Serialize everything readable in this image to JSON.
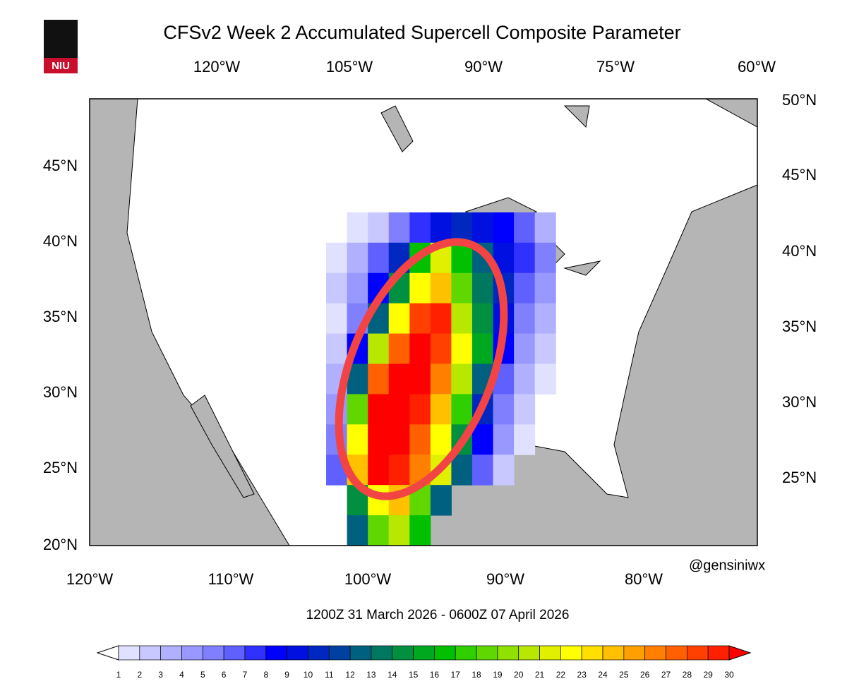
{
  "title": "CFSv2 Week 2 Accumulated Supercell Composite Parameter",
  "logo_text": "NIU",
  "credit": "@gensiniwx",
  "date_range": "1200Z 31  March  2026  - 0600Z 07  April  2026",
  "map": {
    "top_lon_labels": [
      "120°W",
      "105°W",
      "90°W",
      "75°W",
      "60°W"
    ],
    "right_lat_labels": [
      "50°N",
      "45°N",
      "40°N",
      "35°N",
      "30°N",
      "25°N"
    ],
    "left_lat_labels": [
      "45°N",
      "40°N",
      "35°N",
      "30°N",
      "25°N",
      "20°N"
    ],
    "bottom_lon_labels": [
      "120°W",
      "110°W",
      "100°W",
      "90°W",
      "80°W"
    ],
    "lon_range": [
      -120,
      -72
    ],
    "lat_range": [
      20,
      49.5
    ],
    "grid": {
      "lon0": -103,
      "dlon": 1.5,
      "dlat": 2,
      "rows": [
        {
          "lat": 41,
          "values": [
            null,
            1,
            2,
            5,
            7,
            9,
            10,
            9,
            8,
            6,
            3
          ]
        },
        {
          "lat": 39,
          "values": [
            1,
            3,
            6,
            10,
            16,
            21,
            16,
            12,
            9,
            7,
            5
          ]
        },
        {
          "lat": 37,
          "values": [
            2,
            4,
            8,
            14,
            22,
            24,
            18,
            13,
            10,
            6,
            4
          ]
        },
        {
          "lat": 35,
          "values": [
            1,
            5,
            12,
            22,
            28,
            29,
            20,
            14,
            9,
            5,
            3
          ]
        },
        {
          "lat": 33,
          "values": [
            2,
            8,
            20,
            27,
            30,
            28,
            22,
            15,
            8,
            4,
            2
          ]
        },
        {
          "lat": 31,
          "values": [
            3,
            12,
            27,
            30,
            30,
            26,
            20,
            12,
            6,
            3,
            1
          ]
        },
        {
          "lat": 29,
          "values": [
            4,
            18,
            30,
            30,
            29,
            24,
            17,
            10,
            5,
            2,
            null
          ]
        },
        {
          "lat": 27,
          "values": [
            5,
            22,
            30,
            30,
            27,
            22,
            14,
            8,
            4,
            1,
            null
          ]
        },
        {
          "lat": 25,
          "values": [
            6,
            24,
            30,
            29,
            26,
            21,
            12,
            6,
            2,
            null,
            null
          ]
        },
        {
          "lat": 23,
          "values": [
            null,
            14,
            22,
            24,
            18,
            12,
            null,
            null,
            null,
            null,
            null
          ]
        },
        {
          "lat": 21,
          "values": [
            null,
            12,
            18,
            20,
            16,
            null,
            null,
            null,
            null,
            null,
            null
          ]
        }
      ]
    }
  },
  "colorbar": {
    "labels": [
      1,
      2,
      3,
      4,
      5,
      6,
      7,
      8,
      9,
      10,
      11,
      12,
      13,
      14,
      15,
      16,
      17,
      18,
      19,
      20,
      21,
      22,
      23,
      24,
      25,
      26,
      27,
      28,
      29,
      30
    ],
    "colors": [
      "#ffffff",
      "#e0e0ff",
      "#c8c8ff",
      "#b0b0ff",
      "#9898ff",
      "#8080ff",
      "#6060ff",
      "#3030ff",
      "#0000ff",
      "#0010e0",
      "#0028c0",
      "#0040a0",
      "#006080",
      "#007860",
      "#009040",
      "#00a820",
      "#00c000",
      "#30d000",
      "#60d800",
      "#90e000",
      "#b8e800",
      "#e0f000",
      "#ffff00",
      "#ffe000",
      "#ffc000",
      "#ffa000",
      "#ff8000",
      "#ff6000",
      "#ff4000",
      "#ff2000",
      "#ff0000"
    ]
  }
}
